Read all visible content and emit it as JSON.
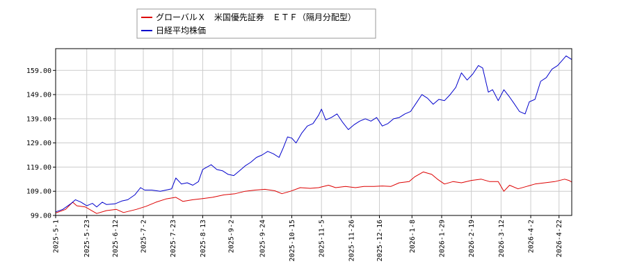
{
  "chart_data": {
    "type": "line",
    "title": "",
    "xlabel": "",
    "ylabel": "",
    "ylim": [
      99.0,
      168.0
    ],
    "yticks": [
      99.0,
      109.0,
      119.0,
      129.0,
      139.0,
      149.0,
      159.0
    ],
    "ytick_labels": [
      "99.00",
      "109.00",
      "119.00",
      "129.00",
      "139.00",
      "149.00",
      "159.00"
    ],
    "xlim": [
      "2025-05-01",
      "2026-05-01"
    ],
    "xticks": [
      "2025-5-1",
      "2025-5-23",
      "2025-6-12",
      "2025-7-2",
      "2025-7-23",
      "2025-8-13",
      "2025-9-2",
      "2025-9-24",
      "2025-10-15",
      "2025-11-5",
      "2025-11-26",
      "2025-12-16",
      "2026-1-8",
      "2026-1-29",
      "2026-2-19",
      "2026-3-12",
      "2026-4-2",
      "2026-4-22"
    ],
    "grid": true,
    "legend_position": "top-left",
    "series": [
      {
        "name": "グローバルＸ　米国優先証券　ＥＴＦ（隔月分配型）",
        "color": "#dd0000",
        "points": [
          [
            "2025-05-01",
            100.0
          ],
          [
            "2025-05-08",
            101.5
          ],
          [
            "2025-05-13",
            104.5
          ],
          [
            "2025-05-16",
            103.0
          ],
          [
            "2025-05-22",
            102.5
          ],
          [
            "2025-05-30",
            99.8
          ],
          [
            "2025-06-06",
            101.0
          ],
          [
            "2025-06-13",
            101.5
          ],
          [
            "2025-06-18",
            100.2
          ],
          [
            "2025-06-27",
            101.5
          ],
          [
            "2025-07-04",
            102.8
          ],
          [
            "2025-07-11",
            104.5
          ],
          [
            "2025-07-18",
            105.8
          ],
          [
            "2025-07-25",
            106.5
          ],
          [
            "2025-07-30",
            104.8
          ],
          [
            "2025-08-06",
            105.5
          ],
          [
            "2025-08-13",
            106.0
          ],
          [
            "2025-08-20",
            106.5
          ],
          [
            "2025-08-28",
            107.5
          ],
          [
            "2025-09-05",
            108.0
          ],
          [
            "2025-09-12",
            109.0
          ],
          [
            "2025-09-19",
            109.5
          ],
          [
            "2025-09-26",
            109.8
          ],
          [
            "2025-10-03",
            109.2
          ],
          [
            "2025-10-08",
            108.0
          ],
          [
            "2025-10-14",
            109.0
          ],
          [
            "2025-10-21",
            110.5
          ],
          [
            "2025-10-28",
            110.2
          ],
          [
            "2025-11-03",
            110.5
          ],
          [
            "2025-11-10",
            111.5
          ],
          [
            "2025-11-15",
            110.5
          ],
          [
            "2025-11-22",
            111.0
          ],
          [
            "2025-11-29",
            110.5
          ],
          [
            "2025-12-05",
            111.0
          ],
          [
            "2025-12-12",
            111.0
          ],
          [
            "2025-12-18",
            111.2
          ],
          [
            "2025-12-24",
            111.0
          ],
          [
            "2025-12-30",
            112.5
          ],
          [
            "2026-01-06",
            113.0
          ],
          [
            "2026-01-10",
            115.0
          ],
          [
            "2026-01-16",
            117.0
          ],
          [
            "2026-01-22",
            116.0
          ],
          [
            "2026-01-26",
            114.0
          ],
          [
            "2026-01-31",
            112.0
          ],
          [
            "2026-02-06",
            113.0
          ],
          [
            "2026-02-12",
            112.5
          ],
          [
            "2026-02-19",
            113.5
          ],
          [
            "2026-02-26",
            114.0
          ],
          [
            "2026-03-04",
            113.0
          ],
          [
            "2026-03-10",
            113.0
          ],
          [
            "2026-03-14",
            109.0
          ],
          [
            "2026-03-18",
            111.5
          ],
          [
            "2026-03-24",
            110.0
          ],
          [
            "2026-03-30",
            111.0
          ],
          [
            "2026-04-05",
            112.0
          ],
          [
            "2026-04-12",
            112.5
          ],
          [
            "2026-04-19",
            113.0
          ],
          [
            "2026-04-26",
            114.0
          ],
          [
            "2026-04-29",
            113.5
          ],
          [
            "2026-05-01",
            112.8
          ]
        ]
      },
      {
        "name": "日経平均株価",
        "color": "#0000cc",
        "points": [
          [
            "2025-05-01",
            100.5
          ],
          [
            "2025-05-06",
            101.5
          ],
          [
            "2025-05-12",
            104.0
          ],
          [
            "2025-05-15",
            105.5
          ],
          [
            "2025-05-19",
            104.5
          ],
          [
            "2025-05-23",
            103.0
          ],
          [
            "2025-05-27",
            104.0
          ],
          [
            "2025-05-30",
            102.5
          ],
          [
            "2025-06-03",
            104.5
          ],
          [
            "2025-06-06",
            103.5
          ],
          [
            "2025-06-12",
            103.8
          ],
          [
            "2025-06-17",
            105.0
          ],
          [
            "2025-06-21",
            105.5
          ],
          [
            "2025-06-26",
            107.5
          ],
          [
            "2025-06-30",
            110.5
          ],
          [
            "2025-07-03",
            109.5
          ],
          [
            "2025-07-08",
            109.5
          ],
          [
            "2025-07-14",
            109.0
          ],
          [
            "2025-07-18",
            109.5
          ],
          [
            "2025-07-22",
            110.0
          ],
          [
            "2025-07-25",
            114.5
          ],
          [
            "2025-07-29",
            112.0
          ],
          [
            "2025-08-02",
            112.5
          ],
          [
            "2025-08-06",
            111.5
          ],
          [
            "2025-08-10",
            113.0
          ],
          [
            "2025-08-13",
            118.0
          ],
          [
            "2025-08-16",
            119.0
          ],
          [
            "2025-08-19",
            120.0
          ],
          [
            "2025-08-23",
            118.0
          ],
          [
            "2025-08-27",
            117.5
          ],
          [
            "2025-08-31",
            116.0
          ],
          [
            "2025-09-04",
            115.5
          ],
          [
            "2025-09-08",
            117.5
          ],
          [
            "2025-09-12",
            119.5
          ],
          [
            "2025-09-16",
            121.0
          ],
          [
            "2025-09-20",
            123.0
          ],
          [
            "2025-09-24",
            124.0
          ],
          [
            "2025-09-28",
            125.5
          ],
          [
            "2025-10-02",
            124.5
          ],
          [
            "2025-10-06",
            123.0
          ],
          [
            "2025-10-09",
            127.0
          ],
          [
            "2025-10-12",
            131.5
          ],
          [
            "2025-10-15",
            131.0
          ],
          [
            "2025-10-18",
            129.0
          ],
          [
            "2025-10-22",
            133.0
          ],
          [
            "2025-10-26",
            136.0
          ],
          [
            "2025-10-30",
            137.0
          ],
          [
            "2025-11-03",
            140.5
          ],
          [
            "2025-11-05",
            143.0
          ],
          [
            "2025-11-08",
            138.5
          ],
          [
            "2025-11-12",
            139.5
          ],
          [
            "2025-11-16",
            141.0
          ],
          [
            "2025-11-20",
            137.5
          ],
          [
            "2025-11-24",
            134.5
          ],
          [
            "2025-11-28",
            136.5
          ],
          [
            "2025-12-02",
            138.0
          ],
          [
            "2025-12-06",
            139.0
          ],
          [
            "2025-12-10",
            138.0
          ],
          [
            "2025-12-14",
            139.5
          ],
          [
            "2025-12-18",
            136.0
          ],
          [
            "2025-12-22",
            137.0
          ],
          [
            "2025-12-26",
            139.0
          ],
          [
            "2025-12-30",
            139.5
          ],
          [
            "2026-01-03",
            141.0
          ],
          [
            "2026-01-07",
            142.0
          ],
          [
            "2026-01-11",
            145.5
          ],
          [
            "2026-01-15",
            149.0
          ],
          [
            "2026-01-19",
            147.5
          ],
          [
            "2026-01-23",
            145.0
          ],
          [
            "2026-01-27",
            147.0
          ],
          [
            "2026-01-31",
            146.5
          ],
          [
            "2026-02-04",
            149.0
          ],
          [
            "2026-02-08",
            152.0
          ],
          [
            "2026-02-12",
            158.0
          ],
          [
            "2026-02-16",
            155.0
          ],
          [
            "2026-02-20",
            157.5
          ],
          [
            "2026-02-24",
            161.0
          ],
          [
            "2026-02-27",
            160.0
          ],
          [
            "2026-03-03",
            150.0
          ],
          [
            "2026-03-06",
            151.0
          ],
          [
            "2026-03-10",
            146.5
          ],
          [
            "2026-03-14",
            151.0
          ],
          [
            "2026-03-18",
            148.0
          ],
          [
            "2026-03-21",
            145.5
          ],
          [
            "2026-03-25",
            142.0
          ],
          [
            "2026-03-29",
            141.0
          ],
          [
            "2026-04-01",
            146.0
          ],
          [
            "2026-04-05",
            147.0
          ],
          [
            "2026-04-09",
            154.5
          ],
          [
            "2026-04-13",
            156.0
          ],
          [
            "2026-04-17",
            159.5
          ],
          [
            "2026-04-21",
            161.0
          ],
          [
            "2026-04-24",
            163.0
          ],
          [
            "2026-04-27",
            165.0
          ],
          [
            "2026-05-01",
            163.5
          ]
        ]
      }
    ]
  }
}
